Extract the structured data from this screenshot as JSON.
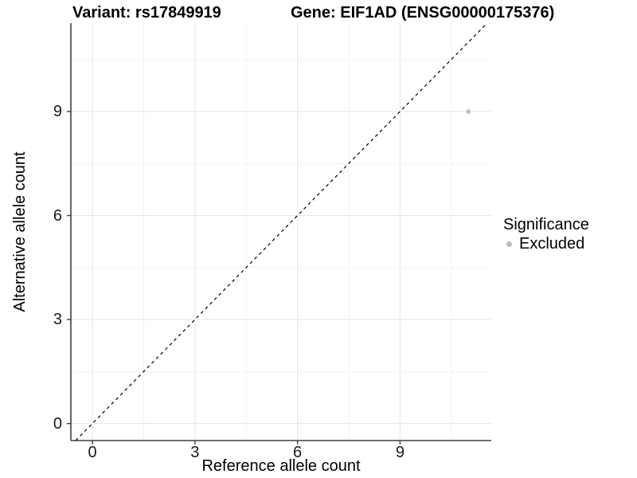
{
  "titles": {
    "left": "Variant: rs17849919",
    "right": "Gene: EIF1AD (ENSG00000175376)"
  },
  "axes": {
    "x": {
      "label": "Reference allele count",
      "tick_labels": [
        "0",
        "3",
        "6",
        "9"
      ]
    },
    "y": {
      "label": "Alternative allele count",
      "tick_labels": [
        "0",
        "3",
        "6",
        "9"
      ]
    }
  },
  "legend": {
    "title": "Significance",
    "items": [
      {
        "label": "Excluded",
        "color": "#bdbdbd"
      }
    ]
  },
  "colors": {
    "background": "#ffffff",
    "grid_major": "#e5e5e5",
    "grid_minor": "#f2f2f2",
    "axis_line": "#3f3f3f",
    "tick_mark": "#3f3f3f",
    "dashed_line": "#000000",
    "point": "#bdbdbd",
    "text": "#000000"
  },
  "chart_data": {
    "type": "scatter",
    "title": "Variant: rs17849919 | Gene: EIF1AD (ENSG00000175376)",
    "xlabel": "Reference allele count",
    "ylabel": "Alternative allele count",
    "xlim": [
      -0.63,
      11.67
    ],
    "ylim": [
      -0.49,
      11.55
    ],
    "xticks": [
      0,
      3,
      6,
      9
    ],
    "yticks": [
      0,
      3,
      6,
      9
    ],
    "minor_xticks": [
      1.5,
      4.5,
      7.5,
      10.5
    ],
    "minor_yticks": [
      1.5,
      4.5,
      7.5,
      10.5
    ],
    "grid": true,
    "legend_position": "right",
    "series": [
      {
        "name": "Excluded",
        "color": "#bdbdbd",
        "points": [
          {
            "x": 11,
            "y": 9
          }
        ]
      }
    ],
    "reference_line": {
      "type": "identity",
      "equation": "y = x",
      "style": "dashed",
      "color": "#000000"
    }
  }
}
